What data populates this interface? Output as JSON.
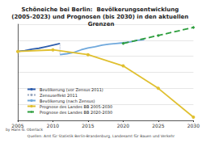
{
  "chart_data": {
    "type": "line",
    "title": "Schöneiche bei Berlin:  Bevölkerungsentwicklung (2005-2023) und Prognosen (bis 2030) in den aktuellen Grenzen",
    "annotations": [
      "by Hans G. Oberlack",
      "Quellen: Amt für Statistik Berlin-Brandenburg, Landesamt für Bauen und Verkehr"
    ],
    "xlim": [
      2005,
      2030
    ],
    "xticks": [
      2005,
      2010,
      2015,
      2020,
      2025,
      2030
    ],
    "ylim": [
      10500,
      13500
    ],
    "yticks": [
      10500,
      11000,
      11500,
      12000,
      12500,
      13000,
      13500
    ],
    "grid": true,
    "tick_labels": "x",
    "legend": "lower left",
    "series": [
      {
        "name": "Bevölkerung (vor Zensus 2011)",
        "color": "#2f5fae",
        "line_style": "solid",
        "marker": "none",
        "x": [
          2005,
          2006,
          2007,
          2008,
          2009,
          2010,
          2011
        ],
        "values": [
          12650,
          12680,
          12720,
          12750,
          12800,
          12850,
          12900
        ]
      },
      {
        "name": "Zensuseffekt 2011",
        "color": "#9aa8c0",
        "line_style": "dotted",
        "marker": "none",
        "x": [
          2011,
          2011
        ],
        "values": [
          12900,
          12550
        ]
      },
      {
        "name": "Bevölkerung (nach Zensus)",
        "color": "#6fa8dc",
        "line_style": "solid",
        "marker": "none",
        "x": [
          2011,
          2012,
          2013,
          2014,
          2015,
          2016,
          2017,
          2018,
          2019,
          2020,
          2021,
          2022,
          2023
        ],
        "values": [
          12550,
          12580,
          12620,
          12700,
          12760,
          12800,
          12850,
          12880,
          12900,
          12920,
          12950,
          13000,
          13020
        ]
      },
      {
        "name": "Prognose des Landes BB 2005-2030",
        "color": "#e0c030",
        "line_style": "solid",
        "marker": "circle",
        "x": [
          2005,
          2010,
          2015,
          2020,
          2025,
          2030
        ],
        "values": [
          12650,
          12700,
          12550,
          12200,
          11500,
          10600
        ]
      },
      {
        "name": "Prognose des Landes BB 2020-2030",
        "color": "#2e9e3e",
        "line_style": "dashed",
        "marker": "diamond",
        "x": [
          2020,
          2025,
          2030
        ],
        "values": [
          12900,
          13150,
          13400
        ]
      }
    ]
  }
}
